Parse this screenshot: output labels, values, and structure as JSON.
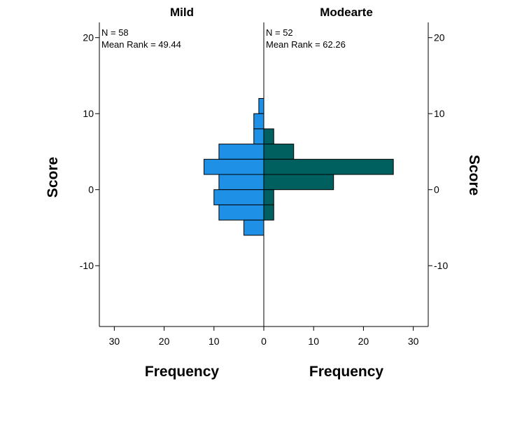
{
  "chart_data": {
    "type": "bar",
    "subtype": "population-pyramid-histogram",
    "panels": [
      {
        "title": "Mild",
        "n_label": "N = 58",
        "mean_rank_label": "Mean Rank = 49.44",
        "color": "#1e90e6",
        "bins": [
          {
            "from": 10,
            "to": 12,
            "count": 1
          },
          {
            "from": 8,
            "to": 10,
            "count": 2
          },
          {
            "from": 6,
            "to": 8,
            "count": 2
          },
          {
            "from": 4,
            "to": 6,
            "count": 9
          },
          {
            "from": 2,
            "to": 4,
            "count": 12
          },
          {
            "from": 0,
            "to": 2,
            "count": 9
          },
          {
            "from": -2,
            "to": 0,
            "count": 10
          },
          {
            "from": -4,
            "to": -2,
            "count": 9
          },
          {
            "from": -6,
            "to": -4,
            "count": 4
          }
        ]
      },
      {
        "title": "Modearte",
        "n_label": "N = 52",
        "mean_rank_label": "Mean Rank = 62.26",
        "color": "#006060",
        "bins": [
          {
            "from": 6,
            "to": 8,
            "count": 2
          },
          {
            "from": 4,
            "to": 6,
            "count": 6
          },
          {
            "from": 2,
            "to": 4,
            "count": 26
          },
          {
            "from": 0,
            "to": 2,
            "count": 14
          },
          {
            "from": -2,
            "to": 0,
            "count": 2
          },
          {
            "from": -4,
            "to": -2,
            "count": 2
          }
        ]
      }
    ],
    "ylabel": "Score",
    "xlabel": "Frequency",
    "ylim": [
      -18,
      22
    ],
    "yticks": [
      20,
      10,
      0,
      -10
    ],
    "ytick_labels": [
      "20",
      "10",
      "0",
      "-10"
    ],
    "xlim": [
      0,
      33
    ],
    "xticks": [
      30,
      20,
      10,
      0
    ],
    "xtick_labels_left": [
      "30",
      "20",
      "10",
      "0"
    ],
    "xtick_labels_right": [
      "10",
      "20",
      "30"
    ],
    "grid": false,
    "bar_edge_color": "#000000"
  }
}
